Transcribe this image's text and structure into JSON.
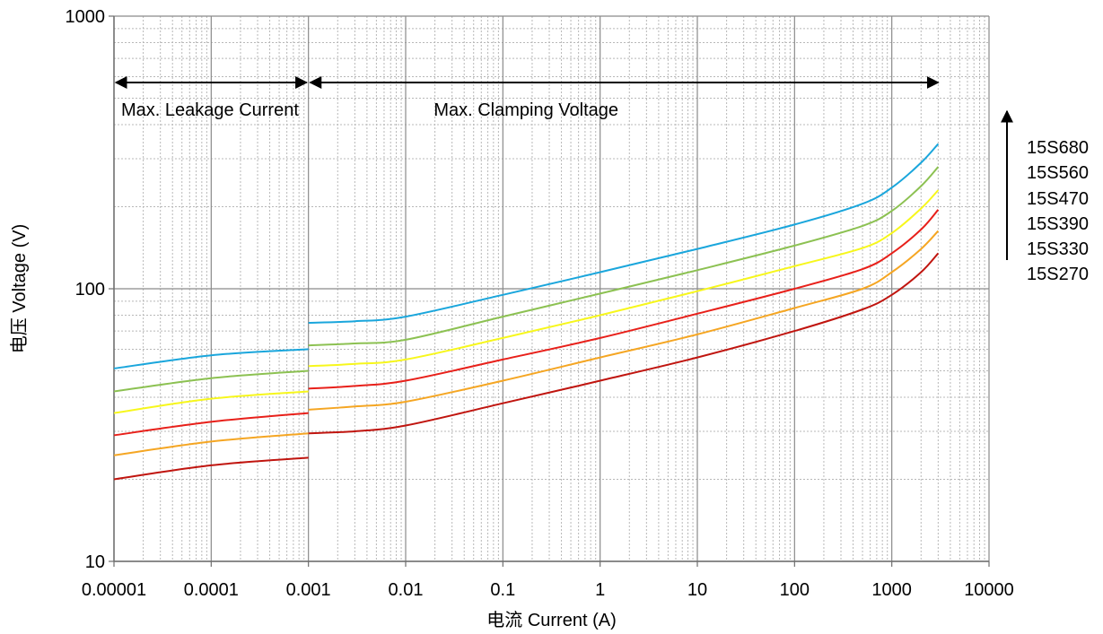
{
  "chart_data": {
    "type": "line",
    "title": "",
    "xlabel": "电流 Current (A)",
    "ylabel": "电压 Voltage (V)",
    "x_scale": "log",
    "y_scale": "log",
    "xlim": [
      1e-05,
      10000
    ],
    "ylim": [
      10,
      1000
    ],
    "grid": true,
    "x_ticks": [
      "0.00001",
      "0.0001",
      "0.001",
      "0.01",
      "0.1",
      "1",
      "10",
      "100",
      "1000",
      "10000"
    ],
    "y_ticks": [
      "10",
      "100",
      "1000"
    ],
    "annotations": {
      "leakage": "Max. Leakage Current",
      "clamping": "Max. Clamping Voltage"
    },
    "legend_order": [
      "15S680",
      "15S560",
      "15S470",
      "15S390",
      "15S330",
      "15S270"
    ],
    "series": [
      {
        "name": "15S680",
        "color": "#1aa6dc",
        "leakage": [
          [
            1e-05,
            51
          ],
          [
            0.0001,
            57
          ],
          [
            0.001,
            60
          ]
        ],
        "clamping": [
          [
            0.001,
            75
          ],
          [
            0.003,
            76
          ],
          [
            0.01,
            79
          ],
          [
            0.1,
            95
          ],
          [
            1,
            115
          ],
          [
            10,
            140
          ],
          [
            100,
            172
          ],
          [
            500,
            205
          ],
          [
            1000,
            235
          ],
          [
            2000,
            290
          ],
          [
            3000,
            340
          ]
        ]
      },
      {
        "name": "15S560",
        "color": "#8cc152",
        "leakage": [
          [
            1e-05,
            42
          ],
          [
            0.0001,
            47
          ],
          [
            0.001,
            50
          ]
        ],
        "clamping": [
          [
            0.001,
            62
          ],
          [
            0.003,
            63
          ],
          [
            0.01,
            65
          ],
          [
            0.1,
            79
          ],
          [
            1,
            96
          ],
          [
            10,
            117
          ],
          [
            100,
            144
          ],
          [
            500,
            170
          ],
          [
            1000,
            193
          ],
          [
            2000,
            238
          ],
          [
            3000,
            280
          ]
        ]
      },
      {
        "name": "15S470",
        "color": "#f7f71c",
        "leakage": [
          [
            1e-05,
            35
          ],
          [
            0.0001,
            39.5
          ],
          [
            0.001,
            42
          ]
        ],
        "clamping": [
          [
            0.001,
            52
          ],
          [
            0.003,
            53
          ],
          [
            0.01,
            55
          ],
          [
            0.1,
            66
          ],
          [
            1,
            80
          ],
          [
            10,
            98
          ],
          [
            100,
            121
          ],
          [
            500,
            141
          ],
          [
            1000,
            160
          ],
          [
            2000,
            197
          ],
          [
            3000,
            230
          ]
        ]
      },
      {
        "name": "15S390",
        "color": "#e8201a",
        "leakage": [
          [
            1e-05,
            29
          ],
          [
            0.0001,
            32.5
          ],
          [
            0.001,
            35
          ]
        ],
        "clamping": [
          [
            0.001,
            43
          ],
          [
            0.003,
            44
          ],
          [
            0.01,
            46
          ],
          [
            0.1,
            55
          ],
          [
            1,
            66
          ],
          [
            10,
            81
          ],
          [
            100,
            100
          ],
          [
            500,
            118
          ],
          [
            1000,
            135
          ],
          [
            2000,
            165
          ],
          [
            3000,
            195
          ]
        ]
      },
      {
        "name": "15S330",
        "color": "#f5a623",
        "leakage": [
          [
            1e-05,
            24.5
          ],
          [
            0.0001,
            27.5
          ],
          [
            0.001,
            29.5
          ]
        ],
        "clamping": [
          [
            0.001,
            36
          ],
          [
            0.003,
            37
          ],
          [
            0.01,
            38.5
          ],
          [
            0.1,
            46
          ],
          [
            1,
            56
          ],
          [
            10,
            68
          ],
          [
            100,
            85
          ],
          [
            500,
            100
          ],
          [
            1000,
            115
          ],
          [
            2000,
            140
          ],
          [
            3000,
            163
          ]
        ]
      },
      {
        "name": "15S270",
        "color": "#c0150f",
        "leakage": [
          [
            1e-05,
            20
          ],
          [
            0.0001,
            22.5
          ],
          [
            0.001,
            24
          ]
        ],
        "clamping": [
          [
            0.001,
            29.5
          ],
          [
            0.003,
            30
          ],
          [
            0.01,
            31.5
          ],
          [
            0.1,
            38
          ],
          [
            1,
            46
          ],
          [
            10,
            56
          ],
          [
            100,
            70
          ],
          [
            500,
            84
          ],
          [
            1000,
            95
          ],
          [
            2000,
            115
          ],
          [
            3000,
            135
          ]
        ]
      }
    ]
  }
}
